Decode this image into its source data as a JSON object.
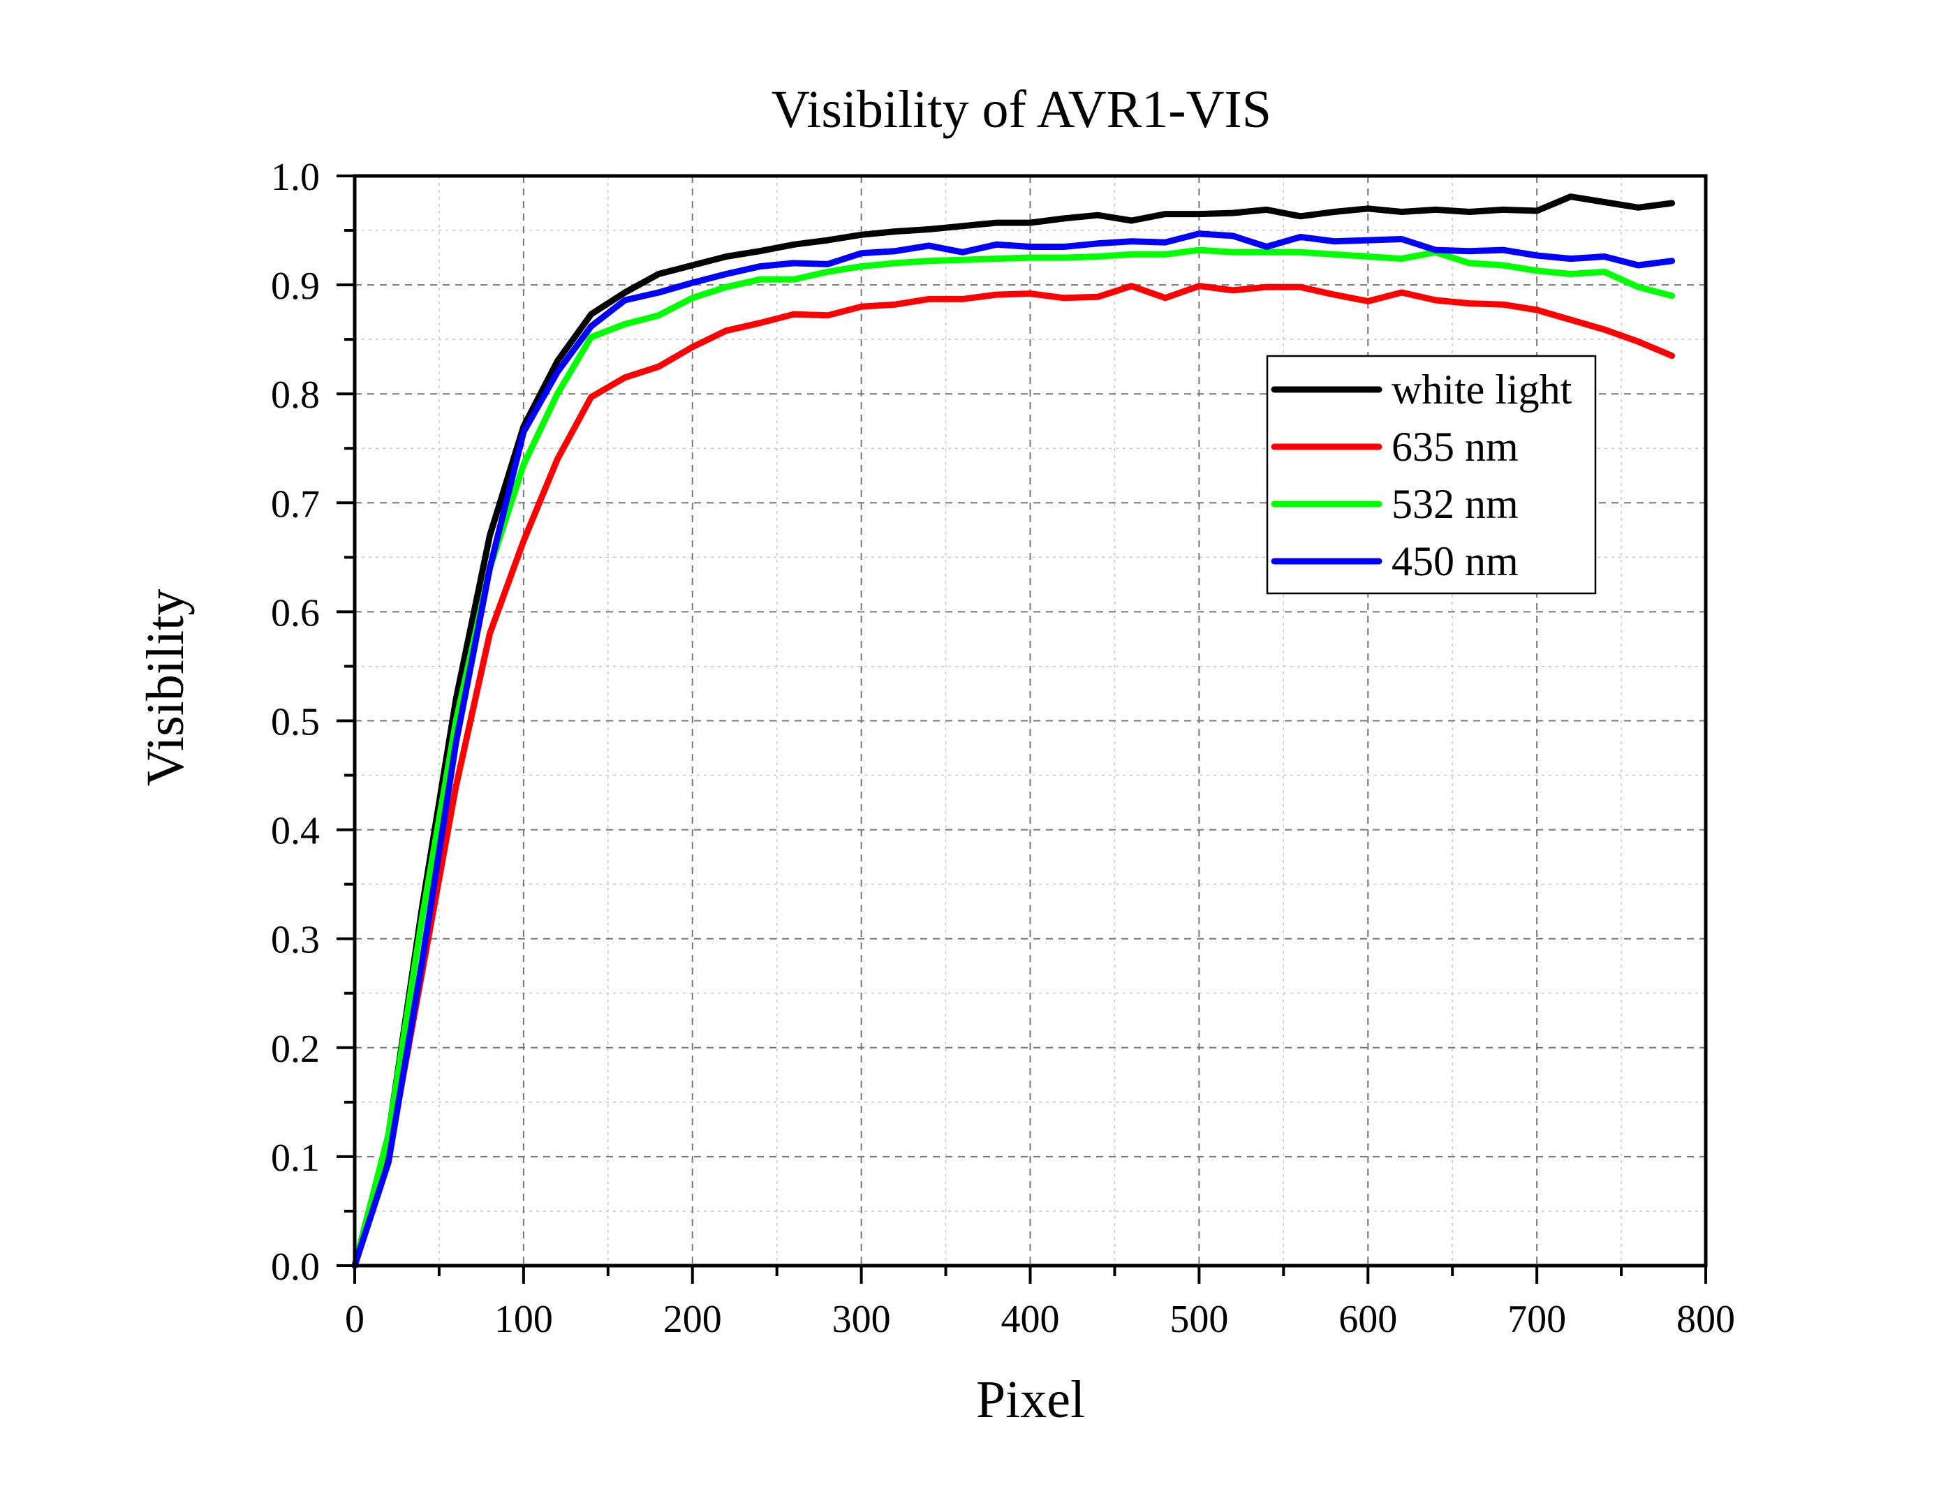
{
  "chart_data": {
    "type": "line",
    "title": "Visibility of AVR1-VIS",
    "xlabel": "Pixel",
    "ylabel": "Visibility",
    "xlim": [
      0,
      800
    ],
    "ylim": [
      0.0,
      1.0
    ],
    "x_ticks": [
      "0",
      "100",
      "200",
      "300",
      "400",
      "500",
      "600",
      "700",
      "800"
    ],
    "y_ticks": [
      "0.0",
      "0.1",
      "0.2",
      "0.3",
      "0.4",
      "0.5",
      "0.6",
      "0.7",
      "0.8",
      "0.9",
      "1.0"
    ],
    "grid": true,
    "legend_position": "right",
    "x": [
      0,
      20,
      40,
      60,
      80,
      100,
      120,
      140,
      160,
      180,
      200,
      220,
      240,
      260,
      280,
      300,
      320,
      340,
      360,
      380,
      400,
      420,
      440,
      460,
      480,
      500,
      520,
      540,
      560,
      580,
      600,
      620,
      640,
      660,
      680,
      700,
      720,
      740,
      760,
      780
    ],
    "series": [
      {
        "name": "white light",
        "color": "#000000",
        "values": [
          0.0,
          0.12,
          0.33,
          0.52,
          0.67,
          0.77,
          0.83,
          0.873,
          0.893,
          0.91,
          0.918,
          0.926,
          0.931,
          0.937,
          0.941,
          0.946,
          0.949,
          0.951,
          0.954,
          0.957,
          0.957,
          0.961,
          0.964,
          0.959,
          0.965,
          0.965,
          0.966,
          0.969,
          0.963,
          0.967,
          0.97,
          0.967,
          0.969,
          0.967,
          0.969,
          0.968,
          0.981,
          0.976,
          0.971,
          0.975
        ]
      },
      {
        "name": "635 nm",
        "color": "#ff0000",
        "values": [
          0.0,
          0.1,
          0.27,
          0.44,
          0.58,
          0.665,
          0.74,
          0.797,
          0.815,
          0.825,
          0.843,
          0.858,
          0.865,
          0.873,
          0.872,
          0.88,
          0.882,
          0.887,
          0.887,
          0.891,
          0.892,
          0.888,
          0.889,
          0.899,
          0.888,
          0.899,
          0.895,
          0.898,
          0.898,
          0.891,
          0.885,
          0.893,
          0.886,
          0.883,
          0.882,
          0.877,
          0.868,
          0.859,
          0.848,
          0.835
        ]
      },
      {
        "name": "532 nm",
        "color": "#00ff00",
        "values": [
          0.0,
          0.12,
          0.32,
          0.5,
          0.64,
          0.735,
          0.8,
          0.852,
          0.864,
          0.872,
          0.888,
          0.898,
          0.905,
          0.905,
          0.912,
          0.917,
          0.92,
          0.922,
          0.923,
          0.924,
          0.925,
          0.925,
          0.926,
          0.928,
          0.928,
          0.932,
          0.93,
          0.93,
          0.93,
          0.928,
          0.926,
          0.924,
          0.93,
          0.92,
          0.918,
          0.913,
          0.91,
          0.912,
          0.898,
          0.89
        ]
      },
      {
        "name": "450 nm",
        "color": "#0000ff",
        "values": [
          0.0,
          0.095,
          0.28,
          0.48,
          0.64,
          0.765,
          0.82,
          0.862,
          0.886,
          0.893,
          0.902,
          0.91,
          0.917,
          0.92,
          0.919,
          0.929,
          0.931,
          0.936,
          0.93,
          0.937,
          0.935,
          0.935,
          0.938,
          0.94,
          0.939,
          0.947,
          0.945,
          0.935,
          0.944,
          0.94,
          0.941,
          0.942,
          0.932,
          0.931,
          0.932,
          0.927,
          0.924,
          0.926,
          0.918,
          0.922
        ]
      }
    ]
  }
}
